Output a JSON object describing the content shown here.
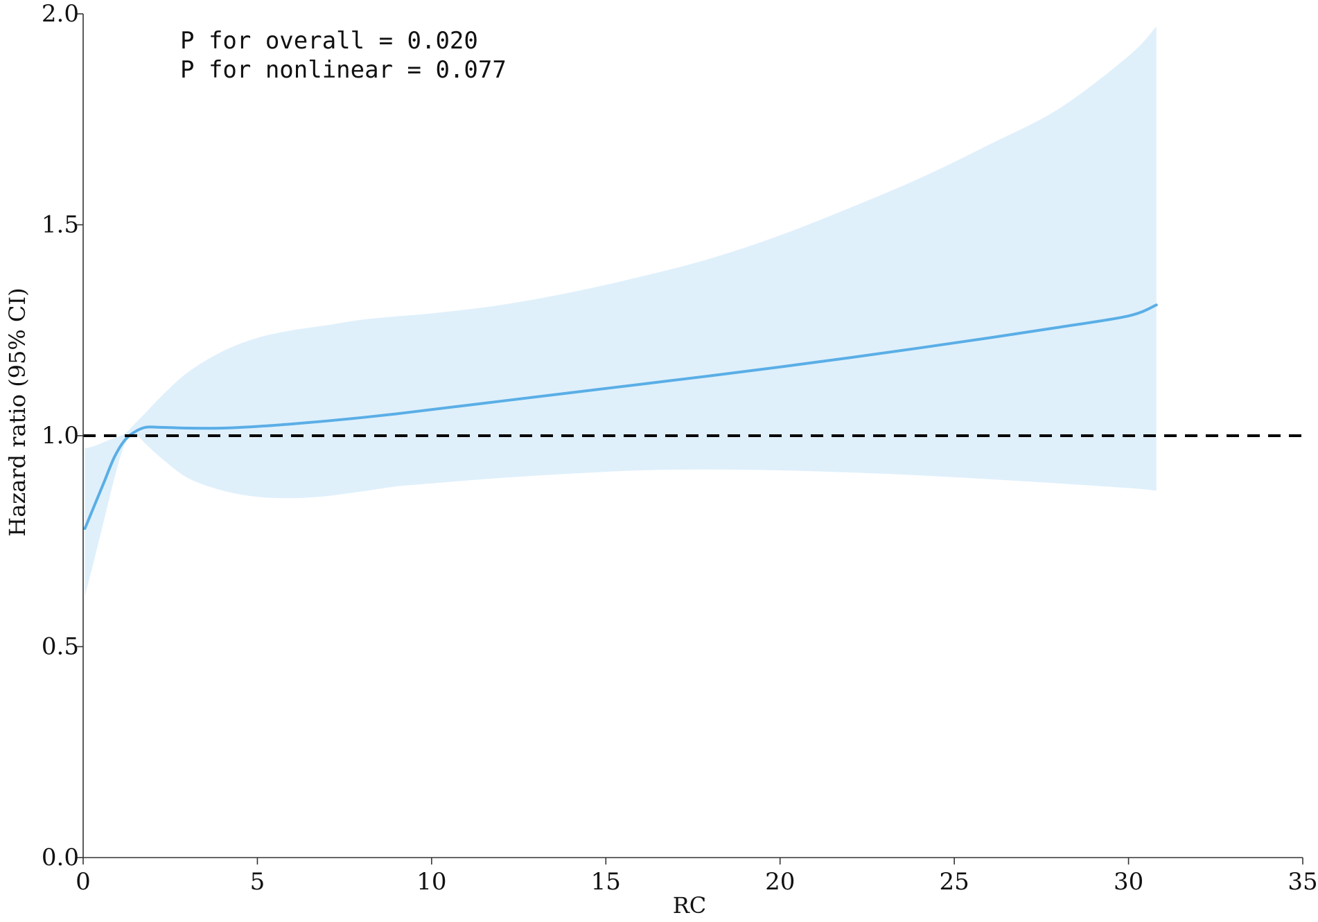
{
  "chart_data": {
    "type": "line",
    "title": "",
    "xlabel": "RC",
    "ylabel": "Hazard ratio (95% CI)",
    "xlim": [
      0,
      35
    ],
    "ylim": [
      0,
      2.0
    ],
    "x_ticks": [
      0,
      5,
      10,
      15,
      20,
      25,
      30,
      35
    ],
    "x_tick_labels": [
      "0",
      "5",
      "10",
      "15",
      "20",
      "25",
      "30",
      "35"
    ],
    "y_ticks": [
      0,
      0.5,
      1.0,
      1.5,
      2.0
    ],
    "y_tick_labels": [
      "0.0",
      "0.5",
      "1.0",
      "1.5",
      "2.0"
    ],
    "grid": false,
    "annotations": [
      "P for overall = 0.020",
      "P for nonlinear = 0.077"
    ],
    "reference_line": {
      "y": 1.0,
      "style": "dashed",
      "color": "#000000"
    },
    "colors": {
      "line": "#5aaee6",
      "band": "#dff0fb",
      "axis": "#333333"
    },
    "series": [
      {
        "x": [
          0.05,
          0.3,
          0.6,
          0.9,
          1.2,
          1.5,
          1.8,
          2.2,
          3,
          4,
          5,
          6,
          7,
          8,
          9,
          10,
          12,
          14,
          16,
          18,
          20,
          22,
          24,
          26,
          28,
          30,
          30.8
        ],
        "y": [
          0.78,
          0.83,
          0.89,
          0.95,
          0.99,
          1.01,
          1.02,
          1.02,
          1.018,
          1.018,
          1.022,
          1.028,
          1.035,
          1.043,
          1.052,
          1.062,
          1.082,
          1.102,
          1.122,
          1.142,
          1.163,
          1.185,
          1.208,
          1.232,
          1.257,
          1.284,
          1.31
        ],
        "lower": [
          0.62,
          0.7,
          0.8,
          0.9,
          0.98,
          1.0,
          0.98,
          0.95,
          0.9,
          0.87,
          0.855,
          0.852,
          0.857,
          0.868,
          0.88,
          0.887,
          0.9,
          0.91,
          0.918,
          0.92,
          0.918,
          0.913,
          0.906,
          0.897,
          0.887,
          0.876,
          0.87
        ],
        "upper": [
          0.97,
          0.975,
          0.985,
          0.995,
          1.005,
          1.03,
          1.055,
          1.09,
          1.15,
          1.2,
          1.232,
          1.25,
          1.262,
          1.275,
          1.283,
          1.29,
          1.31,
          1.34,
          1.377,
          1.42,
          1.475,
          1.54,
          1.61,
          1.69,
          1.775,
          1.9,
          1.97
        ]
      }
    ]
  }
}
